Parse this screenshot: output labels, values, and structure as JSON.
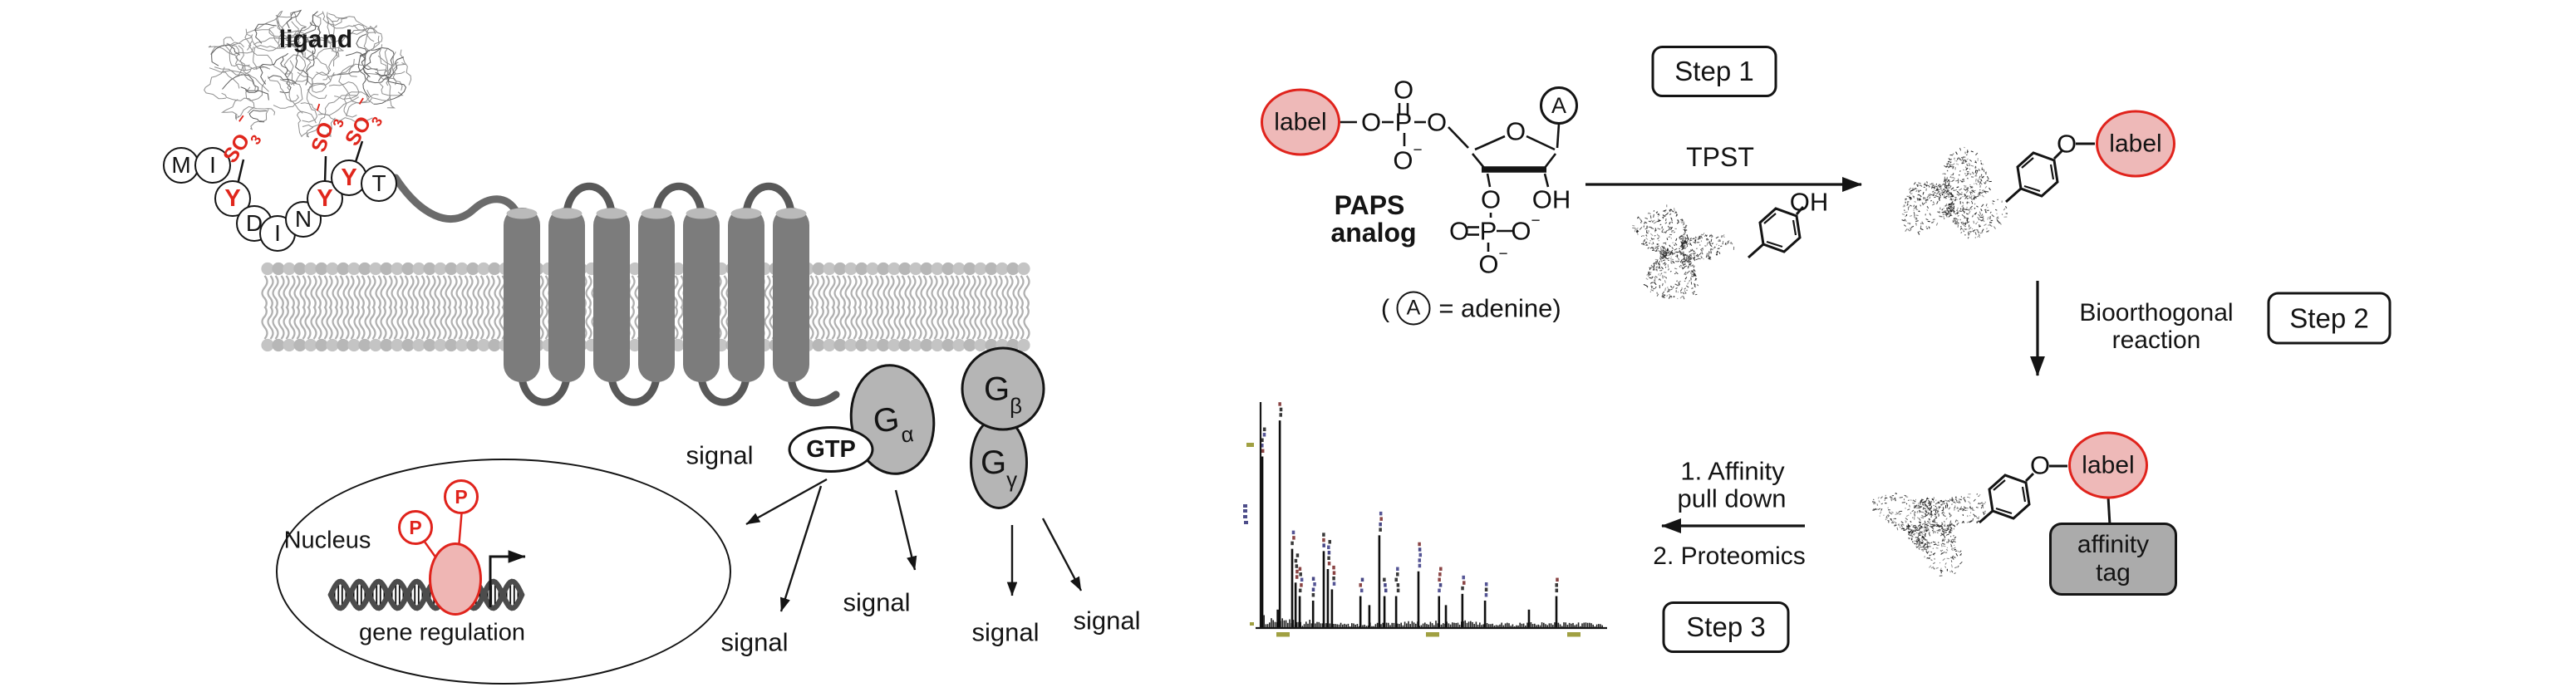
{
  "gpcr": {
    "ligand": "ligand",
    "residues": [
      "M",
      "I",
      "Y",
      "D",
      "I",
      "N",
      "Y",
      "Y",
      "T"
    ],
    "sulfo": {
      "base": "SO",
      "sub": "3",
      "sup": "−"
    },
    "signals": [
      "signal",
      "signal",
      "signal",
      "signal",
      "signal"
    ],
    "gtp": "GTP",
    "g_proteins": [
      {
        "main": "G",
        "sub": "α"
      },
      {
        "main": "G",
        "sub": "β"
      },
      {
        "main": "G",
        "sub": "γ"
      }
    ],
    "nucleus": "Nucleus",
    "gene_regulation": "gene regulation",
    "phosphate": "P"
  },
  "chem": {
    "label": "label",
    "paps1": "PAPS",
    "paps2": "analog",
    "adenine_open": "(",
    "adenine_a": "A",
    "adenine_rest": "= adenine)",
    "ribose_a": "A",
    "steps": [
      "Step 1",
      "Step 2",
      "Step 3"
    ],
    "tpst": "TPST",
    "bio1": "Bioorthogonal",
    "bio2": "reaction",
    "pd1": "1. Affinity",
    "pd2": "pull down",
    "pd3": "2. Proteomics",
    "tag1": "affinity",
    "tag2": "tag",
    "atom_o": "O",
    "atom_p": "P",
    "atom_oh": "OH",
    "sup_minus": "−"
  },
  "colors": {
    "accent_red": "#e0231c",
    "pink_fill": "#eeb9b8",
    "protein_gray": "#b5b5b5",
    "helix_gray": "#7c7c7c",
    "loop_gray": "#595959",
    "membrane_gray": "#b7b7b7",
    "ink": "#141414"
  },
  "chart_data": {
    "type": "bar",
    "subtype": "mass-spectrum",
    "title": "",
    "xlabel": "",
    "ylabel": "",
    "x_axis_tick_labels": "illegible olive micro-text",
    "peak_annotations": "illegible colored micro-text above major peaks",
    "x_range_frac": [
      0,
      1
    ],
    "peaks": [
      {
        "x": 0.005,
        "i": 0.76
      },
      {
        "x": 0.05,
        "i": 0.08
      },
      {
        "x": 0.056,
        "i": 0.92
      },
      {
        "x": 0.092,
        "i": 0.35
      },
      {
        "x": 0.102,
        "i": 0.2
      },
      {
        "x": 0.114,
        "i": 0.14
      },
      {
        "x": 0.153,
        "i": 0.12
      },
      {
        "x": 0.184,
        "i": 0.34
      },
      {
        "x": 0.196,
        "i": 0.26
      },
      {
        "x": 0.208,
        "i": 0.17
      },
      {
        "x": 0.291,
        "i": 0.14
      },
      {
        "x": 0.317,
        "i": 0.1
      },
      {
        "x": 0.346,
        "i": 0.41
      },
      {
        "x": 0.361,
        "i": 0.14
      },
      {
        "x": 0.395,
        "i": 0.14
      },
      {
        "x": 0.46,
        "i": 0.25
      },
      {
        "x": 0.52,
        "i": 0.14
      },
      {
        "x": 0.54,
        "i": 0.1
      },
      {
        "x": 0.588,
        "i": 0.15
      },
      {
        "x": 0.654,
        "i": 0.12
      },
      {
        "x": 0.782,
        "i": 0.08
      },
      {
        "x": 0.862,
        "i": 0.14
      }
    ]
  }
}
